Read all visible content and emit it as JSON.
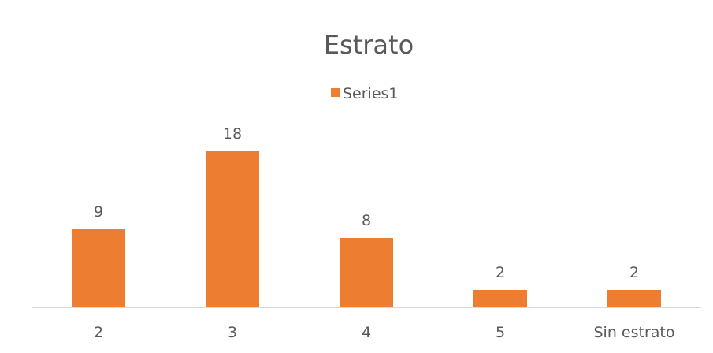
{
  "chart_data": {
    "type": "bar",
    "title": "Estrato",
    "xlabel": "",
    "ylabel": "",
    "categories": [
      "2",
      "3",
      "4",
      "5",
      "Sin estrato"
    ],
    "series": [
      {
        "name": "Series1",
        "values": [
          9,
          18,
          8,
          2,
          2
        ]
      }
    ],
    "ylim": [
      0,
      18
    ],
    "grid": false,
    "legend": "top-center",
    "data_labels": true,
    "colors": {
      "bar": "#ED7D31",
      "text": "#595959",
      "axis": "#D9D9D9",
      "border": "#D9D9D9"
    }
  }
}
